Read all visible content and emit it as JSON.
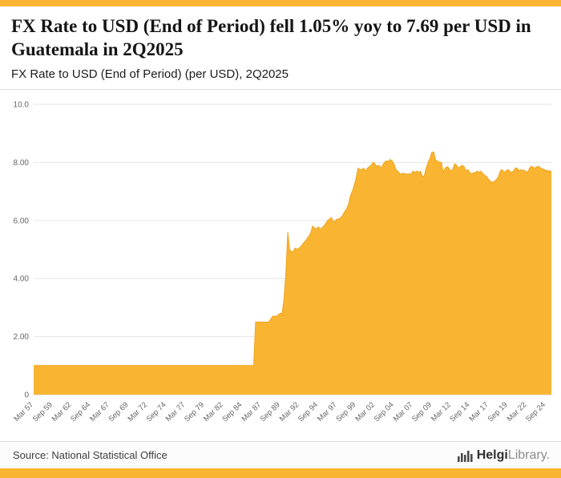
{
  "page": {
    "accent_color": "#F9B432"
  },
  "header": {
    "title": "FX Rate to USD (End of Period) fell 1.05% yoy to 7.69 per USD in Guatemala in 2Q2025",
    "subtitle": "FX Rate to USD (End of Period) (per USD), 2Q2025"
  },
  "footer": {
    "source": "Source: National Statistical Office",
    "brand_bold": "Helgi",
    "brand_light": "Library."
  },
  "chart_data": {
    "type": "area",
    "title": "FX Rate to USD (End of Period) (per USD), 2Q2025",
    "series_name": "FX Rate to USD (End of Period), Guatemala",
    "frequency": "quarterly",
    "latest_period": "2Q2025",
    "latest_value": 7.69,
    "ylim": [
      0,
      10
    ],
    "yticks": [
      0,
      2,
      4,
      6,
      8,
      10
    ],
    "ytick_labels": [
      "0",
      "2.00",
      "4.00",
      "6.00",
      "8.00",
      "10.0"
    ],
    "xtick_every": 10,
    "xtick_labels": [
      "Mar 57",
      "Sep 59",
      "Mar 62",
      "Sep 64",
      "Mar 67",
      "Sep 69",
      "Mar 72",
      "Sep 74",
      "Mar 77",
      "Sep 79",
      "Mar 82",
      "Sep 84",
      "Mar 87",
      "Sep 89",
      "Mar 92",
      "Sep 94",
      "Mar 97",
      "Sep 99",
      "Mar 02",
      "Sep 04",
      "Mar 07",
      "Sep 09",
      "Mar 12",
      "Sep 14",
      "Mar 17",
      "Sep 19",
      "Mar 22",
      "Sep 24"
    ],
    "values": [
      1,
      1,
      1,
      1,
      1,
      1,
      1,
      1,
      1,
      1,
      1,
      1,
      1,
      1,
      1,
      1,
      1,
      1,
      1,
      1,
      1,
      1,
      1,
      1,
      1,
      1,
      1,
      1,
      1,
      1,
      1,
      1,
      1,
      1,
      1,
      1,
      1,
      1,
      1,
      1,
      1,
      1,
      1,
      1,
      1,
      1,
      1,
      1,
      1,
      1,
      1,
      1,
      1,
      1,
      1,
      1,
      1,
      1,
      1,
      1,
      1,
      1,
      1,
      1,
      1,
      1,
      1,
      1,
      1,
      1,
      1,
      1,
      1,
      1,
      1,
      1,
      1,
      1,
      1,
      1,
      1,
      1,
      1,
      1,
      1,
      1,
      1,
      1,
      1,
      1,
      1,
      1,
      1,
      1,
      1,
      1,
      1,
      1,
      1,
      1,
      1,
      1,
      1,
      1,
      1,
      1,
      1,
      1,
      1,
      1,
      1,
      1,
      1,
      1,
      1,
      1,
      1,
      2.5,
      2.5,
      2.5,
      2.5,
      2.5,
      2.5,
      2.5,
      2.5,
      2.6,
      2.7,
      2.7,
      2.7,
      2.75,
      2.8,
      2.8,
      3.3,
      4.2,
      5.6,
      5.0,
      4.9,
      4.95,
      5.05,
      5.0,
      5.05,
      5.1,
      5.2,
      5.27,
      5.35,
      5.45,
      5.55,
      5.8,
      5.75,
      5.7,
      5.78,
      5.7,
      5.75,
      5.8,
      5.9,
      6.0,
      6.05,
      6.1,
      5.95,
      5.98,
      6.05,
      6.05,
      6.1,
      6.18,
      6.3,
      6.4,
      6.55,
      6.85,
      7.0,
      7.2,
      7.45,
      7.8,
      7.75,
      7.75,
      7.8,
      7.7,
      7.8,
      7.85,
      7.9,
      8.0,
      7.95,
      7.85,
      7.9,
      7.8,
      7.9,
      8.0,
      8.05,
      8.03,
      8.1,
      8.05,
      7.95,
      7.75,
      7.7,
      7.6,
      7.6,
      7.63,
      7.6,
      7.6,
      7.6,
      7.6,
      7.7,
      7.65,
      7.7,
      7.65,
      7.7,
      7.5,
      7.55,
      7.8,
      8.0,
      8.15,
      8.35,
      8.35,
      8.05,
      8.05,
      8.0,
      8.0,
      7.65,
      7.8,
      7.85,
      7.8,
      7.7,
      7.75,
      7.95,
      7.9,
      7.8,
      7.85,
      7.9,
      7.85,
      7.7,
      7.75,
      7.65,
      7.6,
      7.65,
      7.65,
      7.7,
      7.65,
      7.7,
      7.6,
      7.55,
      7.5,
      7.4,
      7.35,
      7.3,
      7.35,
      7.4,
      7.5,
      7.7,
      7.75,
      7.65,
      7.7,
      7.75,
      7.7,
      7.65,
      7.7,
      7.8,
      7.8,
      7.7,
      7.75,
      7.73,
      7.72,
      7.65,
      7.73,
      7.85,
      7.85,
      7.8,
      7.83,
      7.87,
      7.82,
      7.78,
      7.76,
      7.73,
      7.71,
      7.7,
      7.69
    ],
    "fill_color": "#F9B432",
    "line_color": "#EFA51F",
    "grid_color": "#E6E6E6",
    "axis_line_color": "#C9C9C9",
    "axis_text_color": "#666666"
  }
}
